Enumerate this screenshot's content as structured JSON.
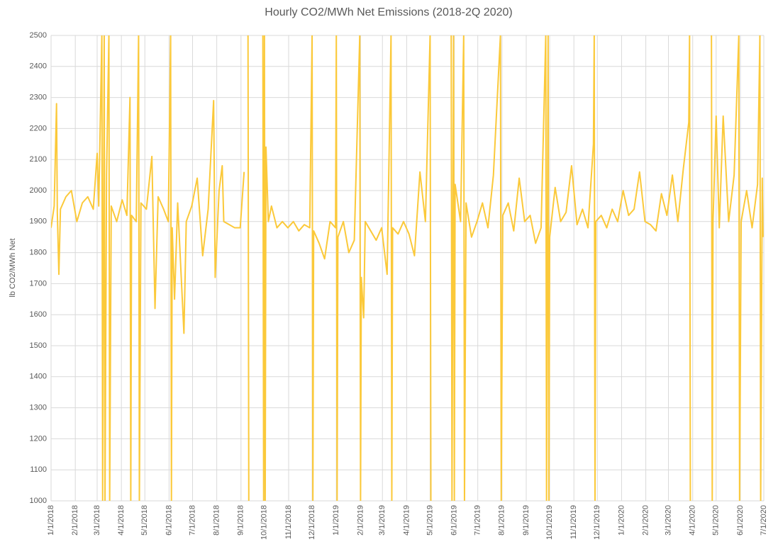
{
  "chart_data": {
    "type": "line",
    "title": "Hourly CO2/MWh Net Emissions (2018-2Q 2020)",
    "y_label": "lb CO2/MWh Net",
    "xlim": [
      "1/1/2018",
      "7/1/2020"
    ],
    "xticks": [
      "1/1/2018",
      "2/1/2018",
      "3/1/2018",
      "4/1/2018",
      "5/1/2018",
      "6/1/2018",
      "7/1/2018",
      "8/1/2018",
      "9/1/2018",
      "10/1/2018",
      "11/1/2018",
      "12/1/2018",
      "1/1/2019",
      "2/1/2019",
      "3/1/2019",
      "4/1/2019",
      "5/1/2019",
      "6/1/2019",
      "7/1/2019",
      "8/1/2019",
      "9/1/2019",
      "10/1/2019",
      "11/1/2019",
      "12/1/2019",
      "1/1/2020",
      "2/1/2020",
      "3/1/2020",
      "4/1/2020",
      "5/1/2020",
      "6/1/2020",
      "7/1/2020"
    ],
    "ylim": [
      1000,
      2500
    ],
    "yticks": [
      1000,
      1100,
      1200,
      1300,
      1400,
      1500,
      1600,
      1700,
      1800,
      1900,
      2000,
      2100,
      2200,
      2300,
      2400,
      2500
    ],
    "grid": true,
    "x": [
      "1/1/2018",
      "1/5/2018",
      "1/8/2018",
      "1/9/2018",
      "1/11/2018",
      "1/13/2018",
      "1/20/2018",
      "1/27/2018",
      "2/3/2018",
      "2/10/2018",
      "2/17/2018",
      "2/24/2018",
      "3/1/2018",
      "3/3/2018",
      "3/7/2018",
      "3/8/2018",
      "3/10/2018",
      "3/11/2018",
      "3/13/2018",
      "3/16/2018",
      "3/17/2018",
      "3/19/2018",
      "3/26/2018",
      "4/2/2018",
      "4/8/2018",
      "4/12/2018",
      "4/13/2018",
      "4/14/2018",
      "4/20/2018",
      "4/23/2018",
      "4/24/2018",
      "4/26/2018",
      "5/3/2018",
      "5/10/2018",
      "5/14/2018",
      "5/18/2018",
      "5/25/2018",
      "5/31/2018",
      "6/3/2018",
      "6/4/2018",
      "6/5/2018",
      "6/8/2018",
      "6/12/2018",
      "6/20/2018",
      "6/23/2018",
      "6/30/2018",
      "7/7/2018",
      "7/14/2018",
      "7/21/2018",
      "7/28/2018",
      "7/30/2018",
      "8/4/2018",
      "8/8/2018",
      "8/10/2018",
      "8/17/2018",
      "8/24/2018",
      "8/31/2018",
      "9/5/2018",
      "9/8/2018",
      "9/10/2018",
      "9/11/2018",
      "9/12/2018",
      "9/29/2018",
      "9/30/2018",
      "10/1/2018",
      "10/2/2018",
      "10/3/2018",
      "10/6/2018",
      "10/10/2018",
      "10/17/2018",
      "10/24/2018",
      "10/31/2018",
      "11/7/2018",
      "11/14/2018",
      "11/21/2018",
      "11/28/2018",
      "12/1/2018",
      "12/2/2018",
      "12/3/2018",
      "12/10/2018",
      "12/17/2018",
      "12/24/2018",
      "12/31/2018",
      "1/1/2019",
      "1/2/2019",
      "1/3/2019",
      "1/10/2019",
      "1/17/2019",
      "1/24/2019",
      "1/31/2019",
      "2/1/2019",
      "2/2/2019",
      "2/5/2019",
      "2/7/2019",
      "2/14/2019",
      "2/21/2019",
      "2/28/2019",
      "3/7/2019",
      "3/12/2019",
      "3/13/2019",
      "3/14/2019",
      "3/21/2019",
      "3/28/2019",
      "4/4/2019",
      "4/11/2019",
      "4/18/2019",
      "4/25/2019",
      "5/1/2019",
      "5/2/2019",
      "5/3/2019",
      "5/28/2019",
      "5/29/2019",
      "5/31/2019",
      "6/1/2019",
      "6/2/2019",
      "6/9/2019",
      "6/13/2019",
      "6/14/2019",
      "6/16/2019",
      "6/23/2019",
      "6/30/2019",
      "7/7/2019",
      "7/14/2019",
      "7/21/2019",
      "7/30/2019",
      "7/31/2019",
      "8/2/2019",
      "8/9/2019",
      "8/16/2019",
      "8/23/2019",
      "8/30/2019",
      "9/6/2019",
      "9/13/2019",
      "9/20/2019",
      "9/26/2019",
      "9/27/2019",
      "9/29/2019",
      "9/30/2019",
      "10/1/2019",
      "10/8/2019",
      "10/15/2019",
      "10/22/2019",
      "10/29/2019",
      "11/5/2019",
      "11/12/2019",
      "11/19/2019",
      "11/26/2019",
      "11/27/2019",
      "11/28/2019",
      "11/29/2019",
      "12/6/2019",
      "12/13/2019",
      "12/20/2019",
      "12/27/2019",
      "1/3/2020",
      "1/10/2020",
      "1/17/2020",
      "1/24/2020",
      "1/31/2020",
      "2/7/2020",
      "2/14/2020",
      "2/21/2020",
      "2/28/2020",
      "3/6/2020",
      "3/13/2020",
      "3/20/2020",
      "3/27/2020",
      "3/28/2020",
      "3/29/2020",
      "3/30/2020",
      "4/25/2020",
      "4/26/2020",
      "4/27/2020",
      "5/1/2020",
      "5/5/2020",
      "5/10/2020",
      "5/17/2020",
      "5/24/2020",
      "5/30/2020",
      "5/31/2020",
      "6/2/2020",
      "6/9/2020",
      "6/16/2020",
      "6/23/2020",
      "6/26/2020",
      "6/27/2020",
      "6/29/2020",
      "6/30/2020"
    ],
    "series": [
      {
        "color": "#fbc93a",
        "values": [
          1880,
          1950,
          2280,
          1930,
          1730,
          1940,
          1980,
          2000,
          1900,
          1960,
          1980,
          1940,
          2120,
          1950,
          2500,
          1000,
          2500,
          1000,
          2050,
          2500,
          1000,
          1950,
          1900,
          1970,
          1920,
          2300,
          1000,
          1920,
          1900,
          2500,
          1000,
          1960,
          1940,
          2110,
          1620,
          1980,
          1940,
          1900,
          2500,
          1000,
          1880,
          1650,
          1960,
          1540,
          1900,
          1950,
          2040,
          1790,
          1940,
          2290,
          1720,
          2000,
          2080,
          1900,
          1890,
          1880,
          1880,
          2060,
          null,
          2500,
          1000,
          null,
          2500,
          1000,
          2500,
          1000,
          2140,
          1900,
          1950,
          1880,
          1900,
          1880,
          1900,
          1870,
          1890,
          1880,
          2500,
          1000,
          1870,
          1830,
          1780,
          1900,
          1880,
          2500,
          1000,
          1850,
          1900,
          1800,
          1840,
          2500,
          1000,
          1720,
          1590,
          1900,
          1870,
          1840,
          1880,
          1730,
          2500,
          1000,
          1880,
          1860,
          1900,
          1860,
          1790,
          2060,
          1900,
          2500,
          1000,
          null,
          2500,
          1000,
          2500,
          1000,
          2020,
          1900,
          2500,
          1000,
          1960,
          1850,
          1900,
          1960,
          1880,
          2050,
          2500,
          1000,
          1920,
          1960,
          1870,
          2040,
          1900,
          1920,
          1830,
          1880,
          2500,
          1000,
          2500,
          1000,
          1850,
          2010,
          1900,
          1930,
          2080,
          1890,
          1940,
          1880,
          2150,
          2500,
          1000,
          1900,
          1920,
          1880,
          1940,
          1900,
          2000,
          1920,
          1940,
          2060,
          1900,
          1890,
          1870,
          1990,
          1920,
          2050,
          1900,
          2070,
          2220,
          2500,
          1000,
          null,
          2500,
          1000,
          1900,
          2240,
          1880,
          2240,
          1900,
          2050,
          2500,
          1000,
          1900,
          2000,
          1880,
          2020,
          2500,
          1000,
          2040,
          1850
        ]
      }
    ]
  }
}
